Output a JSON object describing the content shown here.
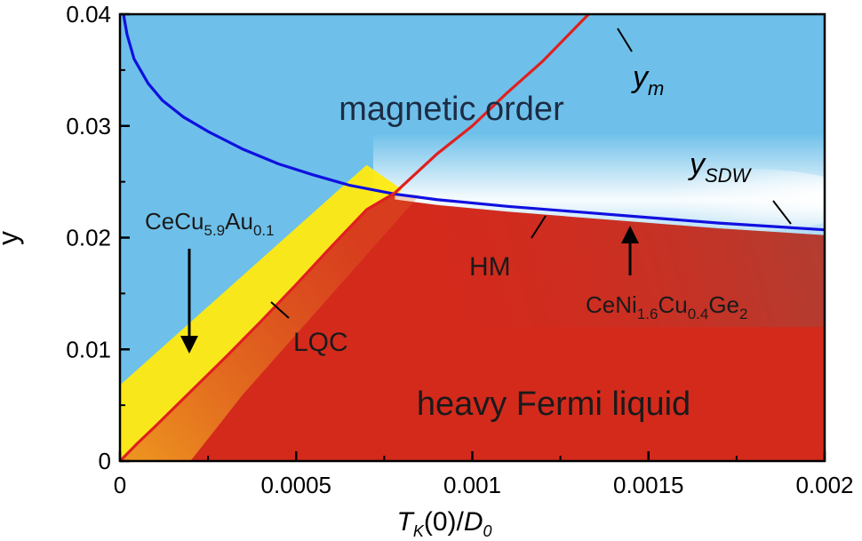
{
  "chart_data": {
    "type": "line",
    "xlim": [
      0,
      0.002
    ],
    "ylim": [
      0,
      0.04
    ],
    "x_ticks": [
      0,
      0.0005,
      0.001,
      0.0015,
      0.002
    ],
    "x_tick_labels": [
      "0",
      "0.0005",
      "0.001",
      "0.0015",
      "0.002"
    ],
    "y_ticks": [
      0,
      0.01,
      0.02,
      0.03,
      0.04
    ],
    "y_tick_labels": [
      "0",
      "0.01",
      "0.02",
      "0.03",
      "0.04"
    ],
    "xlabel": {
      "main": "T",
      "sub": "K",
      "rest": "(0)/",
      "d": "D",
      "dsub": "0"
    },
    "ylabel": "y",
    "grid": false,
    "series": [
      {
        "name": "y_SDW",
        "color": "#1010e0",
        "points": [
          [
            1e-05,
            0.04
          ],
          [
            2e-05,
            0.0382
          ],
          [
            4e-05,
            0.036
          ],
          [
            8e-05,
            0.0338
          ],
          [
            0.00012,
            0.0323
          ],
          [
            0.00018,
            0.0308
          ],
          [
            0.00025,
            0.0295
          ],
          [
            0.00035,
            0.0279
          ],
          [
            0.00045,
            0.0266
          ],
          [
            0.00055,
            0.0256
          ],
          [
            0.00065,
            0.0247
          ],
          [
            0.00078,
            0.0239
          ],
          [
            0.0009,
            0.0234
          ],
          [
            0.0011,
            0.0228
          ],
          [
            0.0013,
            0.0223
          ],
          [
            0.0015,
            0.0218
          ],
          [
            0.0017,
            0.0213
          ],
          [
            0.002,
            0.0207
          ]
        ]
      },
      {
        "name": "y_m",
        "color": "#e02020",
        "points": [
          [
            0.0,
            0.0
          ],
          [
            5e-05,
            0.0016
          ],
          [
            0.0001,
            0.0031
          ],
          [
            0.0002,
            0.0062
          ],
          [
            0.0003,
            0.0093
          ],
          [
            0.0004,
            0.0125
          ],
          [
            0.0005,
            0.0158
          ],
          [
            0.0006,
            0.0192
          ],
          [
            0.0007,
            0.0225
          ],
          [
            0.00078,
            0.024
          ],
          [
            0.0009,
            0.0275
          ],
          [
            0.001,
            0.03
          ],
          [
            0.0011,
            0.033
          ],
          [
            0.0012,
            0.0358
          ],
          [
            0.00133,
            0.04
          ]
        ]
      }
    ],
    "regions": [
      {
        "label": "magnetic order",
        "color": "#6ec0ea"
      },
      {
        "label": "heavy Fermi liquid",
        "color": "#d42a1c"
      }
    ],
    "crossover_colors": {
      "yellow": "#ffec00",
      "orange": "#e8901a",
      "white": "#ffffff"
    },
    "annotations": {
      "ym": {
        "main": "y",
        "sub": "m"
      },
      "ysdw": {
        "main": "y",
        "sub": "SDW"
      },
      "hm": "HM",
      "lqc": "LQC",
      "ceau": {
        "p1": "CeCu",
        "s1": "5.9",
        "p2": "Au",
        "s2": "0.1"
      },
      "ceni": {
        "p1": "CeNi",
        "s1": "1.6",
        "p2": "Cu",
        "s2": "0.4",
        "p3": "Ge",
        "s3": "2"
      }
    },
    "markers": [
      {
        "name": "CeCu5.9Au0.1",
        "x": 0.0002,
        "y": 0.0095
      },
      {
        "name": "CeNi1.6Cu0.4Ge2",
        "x": 0.00145,
        "y": 0.0212
      }
    ]
  }
}
